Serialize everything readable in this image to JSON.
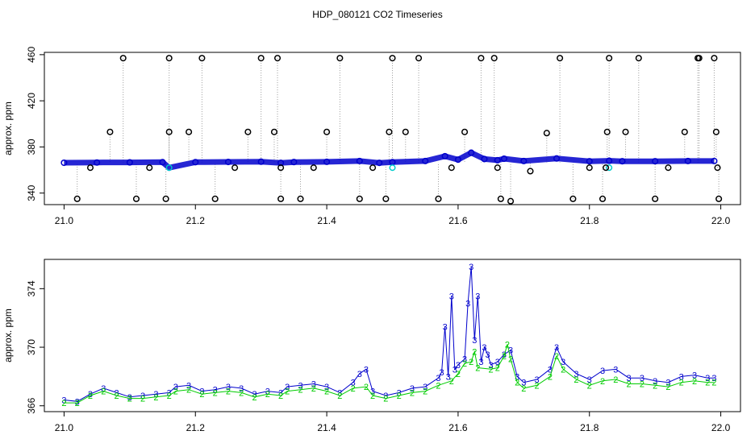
{
  "title": "HDP_080121  CO2 Timeseries",
  "chart_data": [
    {
      "type": "scatter",
      "ylabel": "approx. ppm",
      "xlabel": "",
      "xlim": [
        20.97,
        22.03
      ],
      "ylim": [
        330,
        462
      ],
      "xticks": [
        "21.0",
        "21.2",
        "21.4",
        "21.6",
        "21.8",
        "22.0"
      ],
      "xtick_values": [
        21.0,
        21.2,
        21.4,
        21.6,
        21.8,
        22.0
      ],
      "yticks": [
        "340",
        "380",
        "420",
        "460"
      ],
      "ytick_values": [
        340,
        380,
        420,
        460
      ],
      "grid": false,
      "series": [
        {
          "color": "#0000cc",
          "marker": "circle",
          "points": [
            [
              21.0,
              366.3
            ],
            [
              21.05,
              366.5
            ],
            [
              21.1,
              366.6
            ],
            [
              21.15,
              366.8
            ],
            [
              21.16,
              362
            ],
            [
              21.2,
              366.8
            ],
            [
              21.25,
              367
            ],
            [
              21.3,
              367.2
            ],
            [
              21.33,
              366.2
            ],
            [
              21.35,
              366.9
            ],
            [
              21.4,
              367.1
            ],
            [
              21.45,
              367.8
            ],
            [
              21.48,
              366.2
            ],
            [
              21.5,
              366.8
            ],
            [
              21.55,
              367.8
            ],
            [
              21.58,
              372
            ],
            [
              21.6,
              369
            ],
            [
              21.62,
              375
            ],
            [
              21.64,
              369.5
            ],
            [
              21.66,
              368.5
            ],
            [
              21.67,
              369.8
            ],
            [
              21.7,
              367.8
            ],
            [
              21.75,
              370
            ],
            [
              21.8,
              367.6
            ],
            [
              21.83,
              368
            ],
            [
              21.85,
              367.6
            ],
            [
              21.9,
              367.6
            ],
            [
              21.95,
              367.8
            ],
            [
              21.99,
              367.8
            ]
          ]
        },
        {
          "color": "#00cccc",
          "marker": "circle",
          "points": [
            [
              21.16,
              362
            ],
            [
              21.5,
              362
            ],
            [
              21.83,
              362
            ]
          ]
        },
        {
          "color": "#000000",
          "marker": "circle",
          "points": [
            [
              21.02,
              335
            ],
            [
              21.04,
              362
            ],
            [
              21.07,
              393
            ],
            [
              21.09,
              457
            ],
            [
              21.11,
              335
            ],
            [
              21.13,
              362
            ],
            [
              21.155,
              335
            ],
            [
              21.16,
              393
            ],
            [
              21.16,
              457
            ],
            [
              21.19,
              393
            ],
            [
              21.21,
              457
            ],
            [
              21.23,
              335
            ],
            [
              21.26,
              362
            ],
            [
              21.28,
              393
            ],
            [
              21.3,
              457
            ],
            [
              21.32,
              393
            ],
            [
              21.325,
              457
            ],
            [
              21.33,
              362
            ],
            [
              21.33,
              335
            ],
            [
              21.36,
              335
            ],
            [
              21.38,
              362
            ],
            [
              21.4,
              393
            ],
            [
              21.42,
              457
            ],
            [
              21.45,
              335
            ],
            [
              21.47,
              362
            ],
            [
              21.49,
              335
            ],
            [
              21.495,
              393
            ],
            [
              21.5,
              457
            ],
            [
              21.52,
              393
            ],
            [
              21.54,
              457
            ],
            [
              21.57,
              335
            ],
            [
              21.59,
              362
            ],
            [
              21.61,
              393
            ],
            [
              21.635,
              457
            ],
            [
              21.655,
              457
            ],
            [
              21.66,
              362
            ],
            [
              21.665,
              335
            ],
            [
              21.68,
              333
            ],
            [
              21.71,
              359
            ],
            [
              21.735,
              392
            ],
            [
              21.755,
              457
            ],
            [
              21.775,
              335
            ],
            [
              21.8,
              362
            ],
            [
              21.82,
              335
            ],
            [
              21.825,
              362
            ],
            [
              21.827,
              393
            ],
            [
              21.83,
              457
            ],
            [
              21.855,
              393
            ],
            [
              21.875,
              457
            ],
            [
              21.9,
              335
            ],
            [
              21.92,
              362
            ],
            [
              21.945,
              393
            ],
            [
              21.965,
              457
            ],
            [
              21.967,
              457
            ],
            [
              21.99,
              457
            ],
            [
              21.993,
              393
            ],
            [
              21.995,
              362
            ],
            [
              21.997,
              335
            ]
          ]
        }
      ]
    },
    {
      "type": "line",
      "ylabel": "approx. ppm",
      "xlabel": "",
      "xlim": [
        20.97,
        22.03
      ],
      "ylim": [
        365.6,
        376
      ],
      "xticks": [
        "21.0",
        "21.2",
        "21.4",
        "21.6",
        "21.8",
        "22.0"
      ],
      "xtick_values": [
        21.0,
        21.2,
        21.4,
        21.6,
        21.8,
        22.0
      ],
      "yticks": [
        "366",
        "370",
        "374"
      ],
      "ytick_values": [
        366,
        370,
        374
      ],
      "grid": false,
      "series": [
        {
          "color": "#0000cc",
          "marker": "3",
          "points": [
            [
              21.0,
              366.4
            ],
            [
              21.02,
              366.3
            ],
            [
              21.04,
              366.8
            ],
            [
              21.06,
              367.2
            ],
            [
              21.08,
              366.9
            ],
            [
              21.1,
              366.6
            ],
            [
              21.12,
              366.7
            ],
            [
              21.14,
              366.8
            ],
            [
              21.16,
              366.9
            ],
            [
              21.17,
              367.3
            ],
            [
              21.19,
              367.4
            ],
            [
              21.21,
              367.0
            ],
            [
              21.23,
              367.1
            ],
            [
              21.25,
              367.3
            ],
            [
              21.27,
              367.2
            ],
            [
              21.29,
              366.8
            ],
            [
              21.31,
              367.0
            ],
            [
              21.33,
              366.9
            ],
            [
              21.34,
              367.3
            ],
            [
              21.36,
              367.4
            ],
            [
              21.38,
              367.5
            ],
            [
              21.4,
              367.3
            ],
            [
              21.42,
              366.9
            ],
            [
              21.44,
              367.6
            ],
            [
              21.45,
              368.2
            ],
            [
              21.46,
              368.5
            ],
            [
              21.47,
              367.0
            ],
            [
              21.49,
              366.7
            ],
            [
              21.51,
              366.9
            ],
            [
              21.53,
              367.2
            ],
            [
              21.55,
              367.3
            ],
            [
              21.57,
              367.9
            ],
            [
              21.575,
              368.3
            ],
            [
              21.58,
              371.4
            ],
            [
              21.585,
              368.0
            ],
            [
              21.59,
              373.5
            ],
            [
              21.595,
              368.5
            ],
            [
              21.6,
              368.8
            ],
            [
              21.61,
              369.2
            ],
            [
              21.615,
              373.0
            ],
            [
              21.62,
              375.5
            ],
            [
              21.625,
              370.5
            ],
            [
              21.63,
              373.5
            ],
            [
              21.635,
              369.0
            ],
            [
              21.64,
              370.0
            ],
            [
              21.645,
              369.5
            ],
            [
              21.65,
              368.8
            ],
            [
              21.66,
              369.0
            ],
            [
              21.67,
              369.5
            ],
            [
              21.68,
              369.8
            ],
            [
              21.69,
              368.0
            ],
            [
              21.7,
              367.6
            ],
            [
              21.72,
              367.8
            ],
            [
              21.74,
              368.5
            ],
            [
              21.75,
              370.0
            ],
            [
              21.76,
              369.0
            ],
            [
              21.78,
              368.2
            ],
            [
              21.8,
              367.8
            ],
            [
              21.82,
              368.4
            ],
            [
              21.84,
              368.5
            ],
            [
              21.86,
              367.9
            ],
            [
              21.88,
              367.9
            ],
            [
              21.9,
              367.7
            ],
            [
              21.92,
              367.6
            ],
            [
              21.94,
              368.0
            ],
            [
              21.96,
              368.1
            ],
            [
              21.98,
              367.9
            ],
            [
              21.99,
              367.9
            ]
          ]
        },
        {
          "color": "#00cc00",
          "marker": "2",
          "points": [
            [
              21.0,
              366.2
            ],
            [
              21.02,
              366.2
            ],
            [
              21.04,
              366.7
            ],
            [
              21.06,
              367.0
            ],
            [
              21.08,
              366.7
            ],
            [
              21.1,
              366.5
            ],
            [
              21.12,
              366.5
            ],
            [
              21.14,
              366.6
            ],
            [
              21.16,
              366.7
            ],
            [
              21.17,
              367.0
            ],
            [
              21.19,
              367.1
            ],
            [
              21.21,
              366.8
            ],
            [
              21.23,
              366.9
            ],
            [
              21.25,
              367.0
            ],
            [
              21.27,
              366.9
            ],
            [
              21.29,
              366.6
            ],
            [
              21.31,
              366.8
            ],
            [
              21.33,
              366.7
            ],
            [
              21.34,
              367.0
            ],
            [
              21.36,
              367.1
            ],
            [
              21.38,
              367.2
            ],
            [
              21.4,
              367.0
            ],
            [
              21.42,
              366.7
            ],
            [
              21.44,
              367.2
            ],
            [
              21.46,
              367.3
            ],
            [
              21.47,
              366.7
            ],
            [
              21.49,
              366.5
            ],
            [
              21.51,
              366.7
            ],
            [
              21.53,
              366.9
            ],
            [
              21.55,
              367.0
            ],
            [
              21.57,
              367.4
            ],
            [
              21.59,
              367.7
            ],
            [
              21.6,
              368.2
            ],
            [
              21.61,
              368.9
            ],
            [
              21.62,
              369.0
            ],
            [
              21.625,
              369.7
            ],
            [
              21.63,
              368.6
            ],
            [
              21.65,
              368.5
            ],
            [
              21.66,
              368.6
            ],
            [
              21.67,
              369.4
            ],
            [
              21.675,
              370.2
            ],
            [
              21.68,
              369.2
            ],
            [
              21.69,
              367.6
            ],
            [
              21.7,
              367.2
            ],
            [
              21.72,
              367.4
            ],
            [
              21.74,
              368.0
            ],
            [
              21.75,
              369.4
            ],
            [
              21.76,
              368.5
            ],
            [
              21.78,
              367.8
            ],
            [
              21.8,
              367.4
            ],
            [
              21.82,
              367.7
            ],
            [
              21.84,
              367.8
            ],
            [
              21.86,
              367.5
            ],
            [
              21.88,
              367.5
            ],
            [
              21.9,
              367.4
            ],
            [
              21.92,
              367.3
            ],
            [
              21.94,
              367.6
            ],
            [
              21.96,
              367.7
            ],
            [
              21.98,
              367.6
            ],
            [
              21.99,
              367.6
            ]
          ]
        }
      ]
    }
  ]
}
